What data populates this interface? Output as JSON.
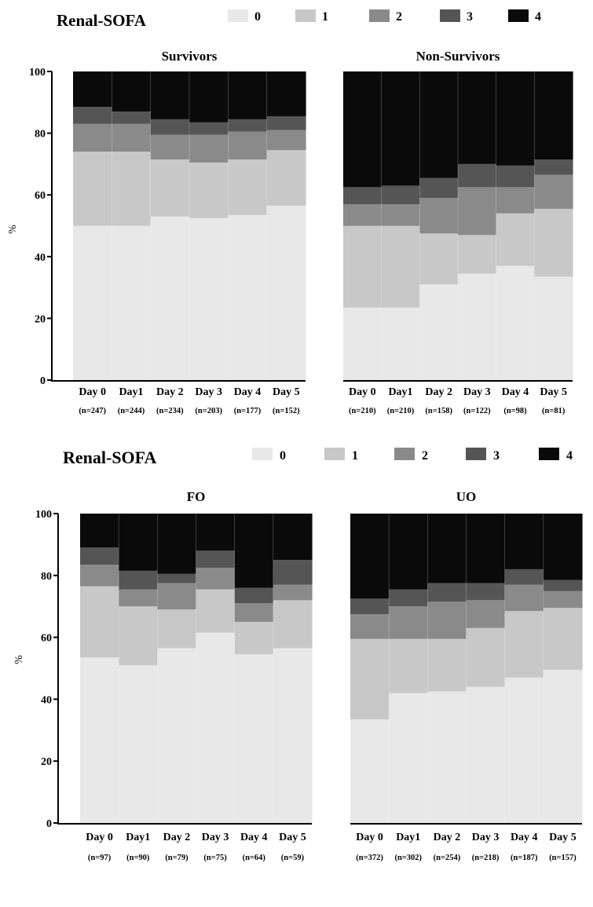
{
  "figures": [
    {
      "legend_title": "Renal-SOFA",
      "legend_labels": [
        "0",
        "1",
        "2",
        "3",
        "4"
      ],
      "ylabel": "%"
    },
    {
      "legend_title": "Renal-SOFA",
      "legend_labels": [
        "0",
        "1",
        "2",
        "3",
        "4"
      ],
      "ylabel": "%"
    }
  ],
  "colors": {
    "score_0": "#e8e8e8",
    "score_1": "#c8c8c8",
    "score_2": "#8a8a8a",
    "score_3": "#555555",
    "score_4": "#0a0a0a"
  },
  "chart_data": [
    {
      "type": "bar",
      "stacked": true,
      "title": "Survivors",
      "ylabel": "%",
      "ylim": [
        0,
        100
      ],
      "yticks": [
        0,
        20,
        40,
        60,
        80,
        100
      ],
      "categories": [
        "Day 0",
        "Day1",
        "Day 2",
        "Day 3",
        "Day 4",
        "Day 5"
      ],
      "n_labels": [
        "(n=247)",
        "(n=244)",
        "(n=234)",
        "(n=203)",
        "(n=177)",
        "(n=152)"
      ],
      "series": [
        {
          "name": "0",
          "values": [
            50,
            50,
            53,
            52.5,
            53.5,
            56.5
          ]
        },
        {
          "name": "1",
          "values": [
            24,
            24,
            18.5,
            18,
            18,
            18
          ]
        },
        {
          "name": "2",
          "values": [
            9,
            9,
            8,
            9,
            9,
            6.5
          ]
        },
        {
          "name": "3",
          "values": [
            5.5,
            4,
            5,
            4,
            4,
            4.5
          ]
        },
        {
          "name": "4",
          "values": [
            11.5,
            13,
            15.5,
            16.5,
            15.5,
            14.5
          ]
        }
      ]
    },
    {
      "type": "bar",
      "stacked": true,
      "title": "Non-Survivors",
      "ylim": [
        0,
        100
      ],
      "categories": [
        "Day 0",
        "Day1",
        "Day 2",
        "Day 3",
        "Day 4",
        "Day 5"
      ],
      "n_labels": [
        "(n=210)",
        "(n=210)",
        "(n=158)",
        "(n=122)",
        "(n=98)",
        "(n=81)"
      ],
      "series": [
        {
          "name": "0",
          "values": [
            23.5,
            23.5,
            31,
            34.5,
            37,
            33.5
          ]
        },
        {
          "name": "1",
          "values": [
            26.5,
            26.5,
            16.5,
            12.5,
            17,
            22
          ]
        },
        {
          "name": "2",
          "values": [
            7,
            7,
            11.5,
            15.5,
            8.5,
            11
          ]
        },
        {
          "name": "3",
          "values": [
            5.5,
            6,
            6.5,
            7.5,
            7,
            5
          ]
        },
        {
          "name": "4",
          "values": [
            37.5,
            37,
            34.5,
            30,
            30.5,
            28.5
          ]
        }
      ]
    },
    {
      "type": "bar",
      "stacked": true,
      "title": "FO",
      "ylabel": "%",
      "ylim": [
        0,
        100
      ],
      "yticks": [
        0,
        20,
        40,
        60,
        80,
        100
      ],
      "categories": [
        "Day 0",
        "Day1",
        "Day 2",
        "Day 3",
        "Day 4",
        "Day 5"
      ],
      "n_labels": [
        "(n=97)",
        "(n=90)",
        "(n=79)",
        "(n=75)",
        "(n=64)",
        "(n=59)"
      ],
      "series": [
        {
          "name": "0",
          "values": [
            53.5,
            51,
            56.5,
            61.5,
            54.5,
            56.5
          ]
        },
        {
          "name": "1",
          "values": [
            23,
            19,
            12.5,
            14,
            10.5,
            15.5
          ]
        },
        {
          "name": "2",
          "values": [
            7,
            5.5,
            8.5,
            7,
            6,
            5
          ]
        },
        {
          "name": "3",
          "values": [
            5.5,
            6,
            3,
            5.5,
            5,
            8
          ]
        },
        {
          "name": "4",
          "values": [
            11,
            18.5,
            19.5,
            12,
            24,
            15
          ]
        }
      ]
    },
    {
      "type": "bar",
      "stacked": true,
      "title": "UO",
      "ylim": [
        0,
        100
      ],
      "categories": [
        "Day 0",
        "Day1",
        "Day 2",
        "Day 3",
        "Day 4",
        "Day 5"
      ],
      "n_labels": [
        "(n=372)",
        "(n=302)",
        "(n=254)",
        "(n=218)",
        "(n=187)",
        "(n=157)"
      ],
      "series": [
        {
          "name": "0",
          "values": [
            33.5,
            42,
            42.5,
            44,
            47,
            49.5
          ]
        },
        {
          "name": "1",
          "values": [
            26,
            17.5,
            17,
            19,
            21.5,
            20
          ]
        },
        {
          "name": "2",
          "values": [
            8,
            10.5,
            12,
            9,
            8.5,
            5.5
          ]
        },
        {
          "name": "3",
          "values": [
            5,
            5.5,
            6,
            5.5,
            5,
            3.5
          ]
        },
        {
          "name": "4",
          "values": [
            27.5,
            24.5,
            22.5,
            22.5,
            18,
            21.5
          ]
        }
      ]
    }
  ]
}
